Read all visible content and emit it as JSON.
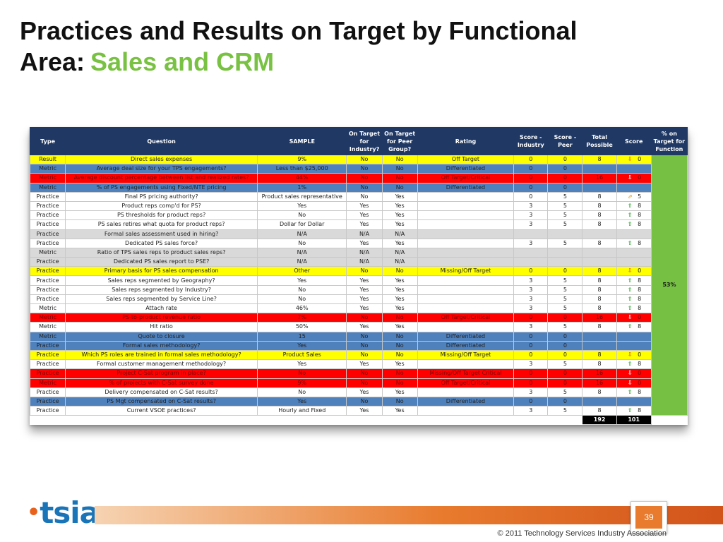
{
  "title": {
    "line1": "Practices and Results on Target by Functional",
    "line2_prefix": "Area:",
    "line2_accent": "Sales and CRM"
  },
  "table": {
    "headers": [
      "Type",
      "Question",
      "SAMPLE",
      "On Target for Industry?",
      "On Target for Peer Group?",
      "Rating",
      "Score - Industry",
      "Score - Peer",
      "Total Possible",
      "Score",
      "% on Target for Function"
    ],
    "pct_on_target": "53%",
    "rows": [
      {
        "color": "yellow",
        "type": "Result",
        "question": "Direct sales expenses",
        "sample": "9%",
        "ind": "No",
        "peer": "No",
        "rating": "Off Target",
        "si": "0",
        "sp": "0",
        "tp": "8",
        "arrow": "down",
        "score": "0"
      },
      {
        "color": "blue",
        "type": "Metric",
        "question": "Average deal size for your TPS engagements?",
        "sample": "Less than $25,000",
        "ind": "No",
        "peer": "No",
        "rating": "Differentiated",
        "si": "0",
        "sp": "0",
        "tp": "",
        "arrow": "",
        "score": ""
      },
      {
        "color": "red",
        "type": "Metric",
        "question": "Average discount percentage between list and realized rates?",
        "sample": "44%",
        "ind": "No",
        "peer": "No",
        "rating": "Off Target/Critical",
        "si": "0",
        "sp": "0",
        "tp": "16",
        "arrow": "down",
        "score": "0"
      },
      {
        "color": "blue",
        "type": "Metric",
        "question": "% of PS engagements using Fixed/NTE pricing",
        "sample": "1%",
        "ind": "No",
        "peer": "No",
        "rating": "Differentiated",
        "si": "0",
        "sp": "0",
        "tp": "",
        "arrow": "",
        "score": ""
      },
      {
        "color": "white",
        "type": "Practice",
        "question": "Final PS pricing authority?",
        "sample": "Product sales representative",
        "ind": "No",
        "peer": "Yes",
        "rating": "",
        "si": "0",
        "sp": "5",
        "tp": "8",
        "arrow": "diag",
        "score": "5"
      },
      {
        "color": "white",
        "type": "Practice",
        "question": "Product reps comp'd for PS?",
        "sample": "Yes",
        "ind": "Yes",
        "peer": "Yes",
        "rating": "",
        "si": "3",
        "sp": "5",
        "tp": "8",
        "arrow": "up",
        "score": "8"
      },
      {
        "color": "white",
        "type": "Practice",
        "question": "PS thresholds for product reps?",
        "sample": "No",
        "ind": "Yes",
        "peer": "Yes",
        "rating": "",
        "si": "3",
        "sp": "5",
        "tp": "8",
        "arrow": "up",
        "score": "8"
      },
      {
        "color": "white",
        "type": "Practice",
        "question": "PS sales retires what quota for product reps?",
        "sample": "Dollar for Dollar",
        "ind": "Yes",
        "peer": "Yes",
        "rating": "",
        "si": "3",
        "sp": "5",
        "tp": "8",
        "arrow": "up",
        "score": "8"
      },
      {
        "color": "gray",
        "type": "Practice",
        "question": "Formal sales assessment used in hiring?",
        "sample": "N/A",
        "ind": "N/A",
        "peer": "N/A",
        "rating": "",
        "si": "",
        "sp": "",
        "tp": "",
        "arrow": "",
        "score": ""
      },
      {
        "color": "white",
        "type": "Practice",
        "question": "Dedicated PS sales force?",
        "sample": "No",
        "ind": "Yes",
        "peer": "Yes",
        "rating": "",
        "si": "3",
        "sp": "5",
        "tp": "8",
        "arrow": "up",
        "score": "8"
      },
      {
        "color": "gray",
        "type": "Metric",
        "question": "Ratio of TPS sales reps to product sales reps?",
        "sample": "N/A",
        "ind": "N/A",
        "peer": "N/A",
        "rating": "",
        "si": "",
        "sp": "",
        "tp": "",
        "arrow": "",
        "score": ""
      },
      {
        "color": "gray",
        "type": "Practice",
        "question": "Dedicated PS sales report to PSE?",
        "sample": "N/A",
        "ind": "N/A",
        "peer": "N/A",
        "rating": "",
        "si": "",
        "sp": "",
        "tp": "",
        "arrow": "",
        "score": ""
      },
      {
        "color": "yellow",
        "type": "Practice",
        "question": "Primary basis for PS sales compensation",
        "sample": "Other",
        "ind": "No",
        "peer": "No",
        "rating": "Missing/Off Target",
        "si": "0",
        "sp": "0",
        "tp": "8",
        "arrow": "down",
        "score": "0"
      },
      {
        "color": "white",
        "type": "Practice",
        "question": "Sales reps segmented by Geography?",
        "sample": "Yes",
        "ind": "Yes",
        "peer": "Yes",
        "rating": "",
        "si": "3",
        "sp": "5",
        "tp": "8",
        "arrow": "up",
        "score": "8"
      },
      {
        "color": "white",
        "type": "Practice",
        "question": "Sales reps segmented by Industry?",
        "sample": "No",
        "ind": "Yes",
        "peer": "Yes",
        "rating": "",
        "si": "3",
        "sp": "5",
        "tp": "8",
        "arrow": "up",
        "score": "8"
      },
      {
        "color": "white",
        "type": "Practice",
        "question": "Sales reps segmented by Service Line?",
        "sample": "No",
        "ind": "Yes",
        "peer": "Yes",
        "rating": "",
        "si": "3",
        "sp": "5",
        "tp": "8",
        "arrow": "up",
        "score": "8"
      },
      {
        "color": "white",
        "type": "Metric",
        "question": "Attach rate",
        "sample": "46%",
        "ind": "Yes",
        "peer": "Yes",
        "rating": "",
        "si": "3",
        "sp": "5",
        "tp": "8",
        "arrow": "up",
        "score": "8"
      },
      {
        "color": "red",
        "type": "Metric",
        "question": "PS-to-product revenue ratio",
        "sample": "7%",
        "ind": "No",
        "peer": "No",
        "rating": "Off Target/Critical",
        "si": "0",
        "sp": "0",
        "tp": "16",
        "arrow": "down",
        "score": "0"
      },
      {
        "color": "white",
        "type": "Metric",
        "question": "Hit ratio",
        "sample": "50%",
        "ind": "Yes",
        "peer": "Yes",
        "rating": "",
        "si": "3",
        "sp": "5",
        "tp": "8",
        "arrow": "up",
        "score": "8"
      },
      {
        "color": "blue",
        "type": "Metric",
        "question": "Quote to closure",
        "sample": "15",
        "ind": "No",
        "peer": "No",
        "rating": "Differentiated",
        "si": "0",
        "sp": "0",
        "tp": "",
        "arrow": "",
        "score": ""
      },
      {
        "color": "blue",
        "type": "Practice",
        "question": "Formal sales methodology?",
        "sample": "Yes",
        "ind": "No",
        "peer": "No",
        "rating": "Differentiated",
        "si": "0",
        "sp": "0",
        "tp": "",
        "arrow": "",
        "score": ""
      },
      {
        "color": "yellow",
        "type": "Practice",
        "question": "Which PS roles are trained in formal sales methodology?",
        "sample": "Product Sales",
        "ind": "No",
        "peer": "No",
        "rating": "Missing/Off Target",
        "si": "0",
        "sp": "0",
        "tp": "8",
        "arrow": "down",
        "score": "0"
      },
      {
        "color": "white",
        "type": "Practice",
        "question": "Formal customer management methodology?",
        "sample": "Yes",
        "ind": "Yes",
        "peer": "Yes",
        "rating": "",
        "si": "3",
        "sp": "5",
        "tp": "8",
        "arrow": "up",
        "score": "8"
      },
      {
        "color": "red",
        "type": "Practice",
        "question": "Project C-Sat program in place?",
        "sample": "No",
        "ind": "No",
        "peer": "No",
        "rating": "Missing/Off Target Critical",
        "si": "0",
        "sp": "0",
        "tp": "16",
        "arrow": "down",
        "score": "0"
      },
      {
        "color": "red",
        "type": "Metric",
        "question": "% of projects with C-Sat survey done",
        "sample": "9%",
        "ind": "No",
        "peer": "No",
        "rating": "Off Target/Critical",
        "si": "0",
        "sp": "0",
        "tp": "16",
        "arrow": "down",
        "score": "0"
      },
      {
        "color": "white",
        "type": "Practice",
        "question": "Delivery compensated on C-Sat results?",
        "sample": "No",
        "ind": "Yes",
        "peer": "Yes",
        "rating": "",
        "si": "3",
        "sp": "5",
        "tp": "8",
        "arrow": "up",
        "score": "8"
      },
      {
        "color": "blue",
        "type": "Practice",
        "question": "PS Mgt compensated on C-Sat results?",
        "sample": "Yes",
        "ind": "No",
        "peer": "No",
        "rating": "Differentiated",
        "si": "0",
        "sp": "0",
        "tp": "",
        "arrow": "",
        "score": ""
      },
      {
        "color": "white",
        "type": "Practice",
        "question": "Current VSOE practices?",
        "sample": "Hourly and Fixed",
        "ind": "Yes",
        "peer": "Yes",
        "rating": "",
        "si": "3",
        "sp": "5",
        "tp": "8",
        "arrow": "up",
        "score": "8"
      }
    ],
    "totals": {
      "total_possible": "192",
      "score": "101"
    }
  },
  "footer": {
    "logo_text": "tsia",
    "page_number": "39",
    "copyright": "© 2011 Technology Services Industry Association"
  }
}
